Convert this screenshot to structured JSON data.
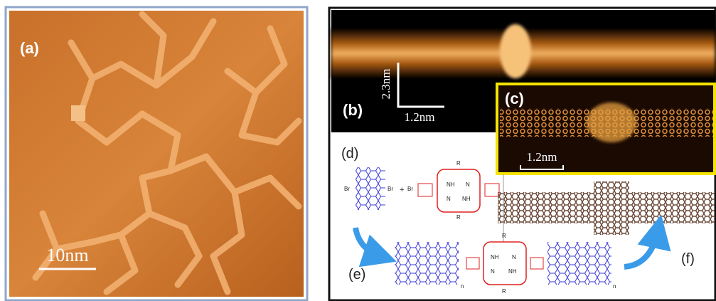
{
  "panels": {
    "a": {
      "label": "(a)",
      "scale_bar": "10nm"
    },
    "b": {
      "label": "(b)",
      "scale_vertical": "2.3nm",
      "scale_horizontal": "1.2nm"
    },
    "c": {
      "label": "(c)",
      "scale_bar": "1.2nm"
    },
    "d": {
      "label": "(d)",
      "left_br": "Br",
      "right_br": "Br",
      "plus": "+",
      "top_r": "R",
      "left_br_2": "Br",
      "nh_1": "NH",
      "n_1": "N",
      "nh_2": "NH",
      "n_2": "N",
      "bottom_r": "R"
    },
    "e": {
      "label": "(e)",
      "nh_1": "NH",
      "n_1": "N",
      "n_2": "N",
      "nh_2": "NH",
      "top_r": "R",
      "bottom_r": "R",
      "n_left": "n",
      "n_right": "n"
    },
    "f": {
      "label": "(f)"
    }
  }
}
